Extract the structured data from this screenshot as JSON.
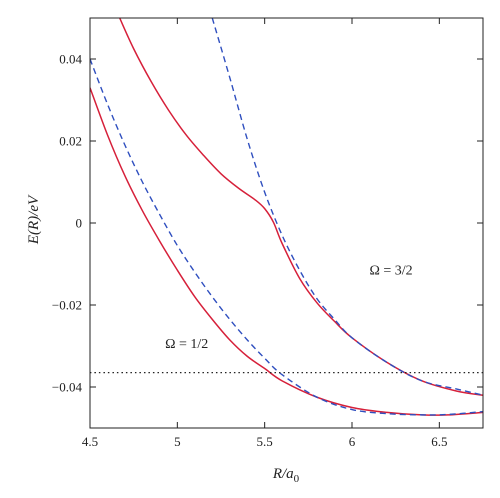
{
  "chart_data": {
    "type": "line",
    "xlabel": "R/a",
    "xlabel_sub": "0",
    "ylabel": "E(R)/eV",
    "xlim": [
      4.5,
      6.75
    ],
    "ylim": [
      -0.05,
      0.05
    ],
    "xticks": [
      4.5,
      5,
      5.5,
      6,
      6.5
    ],
    "xtick_labels": [
      "4.5",
      "5",
      "5.5",
      "6",
      "6.5"
    ],
    "yticks": [
      -0.04,
      -0.02,
      0,
      0.02,
      0.04
    ],
    "ytick_labels": [
      "−0.04",
      "−0.02",
      "0",
      "0.02",
      "0.04"
    ],
    "grid": false,
    "colors": {
      "solid": "#d6203a",
      "dashed": "#2f4fbf",
      "dotted": "#222222"
    },
    "annotations": [
      {
        "text": "Ω = 1/2",
        "x": 4.93,
        "y": -0.0305
      },
      {
        "text": "Ω = 3/2",
        "x": 6.1,
        "y": -0.0125
      }
    ],
    "series": [
      {
        "style": "solid",
        "color": "#d6203a",
        "points": [
          [
            4.5,
            0.033
          ],
          [
            4.6,
            0.0215
          ],
          [
            4.7,
            0.0115
          ],
          [
            4.8,
            0.003
          ],
          [
            4.9,
            -0.0045
          ],
          [
            5.0,
            -0.0115
          ],
          [
            5.1,
            -0.018
          ],
          [
            5.2,
            -0.0235
          ],
          [
            5.3,
            -0.0285
          ],
          [
            5.4,
            -0.0325
          ],
          [
            5.5,
            -0.0355
          ],
          [
            5.6,
            -0.0385
          ],
          [
            5.8,
            -0.0425
          ],
          [
            6.0,
            -0.045
          ],
          [
            6.2,
            -0.0462
          ],
          [
            6.4,
            -0.0468
          ],
          [
            6.55,
            -0.0468
          ],
          [
            6.75,
            -0.0462
          ]
        ]
      },
      {
        "style": "dashed",
        "color": "#2f4fbf",
        "points": [
          [
            4.5,
            0.04
          ],
          [
            4.6,
            0.029
          ],
          [
            4.7,
            0.019
          ],
          [
            4.8,
            0.01
          ],
          [
            4.9,
            0.002
          ],
          [
            5.0,
            -0.0055
          ],
          [
            5.1,
            -0.012
          ],
          [
            5.2,
            -0.018
          ],
          [
            5.3,
            -0.0235
          ],
          [
            5.4,
            -0.0285
          ],
          [
            5.5,
            -0.033
          ],
          [
            5.6,
            -0.037
          ],
          [
            5.8,
            -0.0425
          ],
          [
            6.0,
            -0.0455
          ],
          [
            6.2,
            -0.0465
          ],
          [
            6.4,
            -0.0468
          ],
          [
            6.55,
            -0.0467
          ],
          [
            6.75,
            -0.046
          ]
        ]
      },
      {
        "style": "solid",
        "color": "#d6203a",
        "points": [
          [
            4.67,
            0.05
          ],
          [
            4.75,
            0.0425
          ],
          [
            4.85,
            0.0345
          ],
          [
            4.95,
            0.0275
          ],
          [
            5.05,
            0.0215
          ],
          [
            5.15,
            0.0165
          ],
          [
            5.25,
            0.012
          ],
          [
            5.35,
            0.0085
          ],
          [
            5.45,
            0.0055
          ],
          [
            5.5,
            0.0035
          ],
          [
            5.55,
            0.0002
          ],
          [
            5.6,
            -0.005
          ],
          [
            5.7,
            -0.0135
          ],
          [
            5.8,
            -0.0195
          ],
          [
            5.9,
            -0.024
          ],
          [
            6.0,
            -0.028
          ],
          [
            6.2,
            -0.034
          ],
          [
            6.4,
            -0.0385
          ],
          [
            6.6,
            -0.041
          ],
          [
            6.75,
            -0.042
          ]
        ]
      },
      {
        "style": "dashed",
        "color": "#2f4fbf",
        "points": [
          [
            5.2,
            0.05
          ],
          [
            5.3,
            0.0355
          ],
          [
            5.4,
            0.0205
          ],
          [
            5.5,
            0.0075
          ],
          [
            5.6,
            -0.003
          ],
          [
            5.7,
            -0.0115
          ],
          [
            5.8,
            -0.0185
          ],
          [
            5.9,
            -0.0235
          ],
          [
            6.0,
            -0.028
          ],
          [
            6.2,
            -0.034
          ],
          [
            6.4,
            -0.0385
          ],
          [
            6.6,
            -0.0405
          ],
          [
            6.75,
            -0.042
          ]
        ]
      },
      {
        "style": "dotted",
        "color": "#222222",
        "points": [
          [
            4.5,
            -0.0365
          ],
          [
            6.75,
            -0.0365
          ]
        ]
      }
    ]
  }
}
